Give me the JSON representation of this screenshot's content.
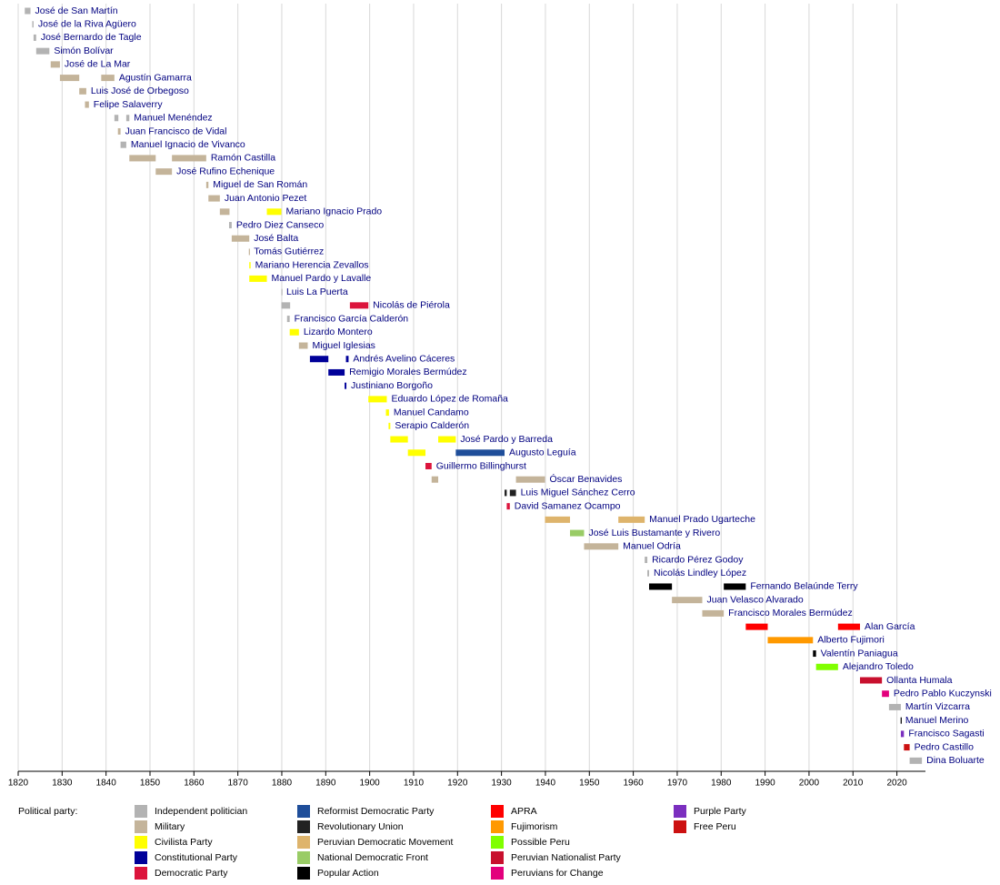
{
  "chart_data": {
    "type": "timeline",
    "legend_title": "Political party:",
    "xlim": [
      1820,
      2026.5
    ],
    "xticks": [
      1820,
      1830,
      1840,
      1850,
      1860,
      1870,
      1880,
      1890,
      1900,
      1910,
      1920,
      1930,
      1940,
      1950,
      1960,
      1970,
      1980,
      1990,
      2000,
      2010,
      2020
    ],
    "grid": true,
    "parties": [
      {
        "name": "Independent politician",
        "color": "#b3b3b3"
      },
      {
        "name": "Military",
        "color": "#c4b49a"
      },
      {
        "name": "Civilista Party",
        "color": "#ffff00"
      },
      {
        "name": "Constitutional Party",
        "color": "#000099"
      },
      {
        "name": "Democratic Party",
        "color": "#dc143c"
      },
      {
        "name": "Reformist Democratic Party",
        "color": "#1f4e9a"
      },
      {
        "name": "Revolutionary Union",
        "color": "#222222"
      },
      {
        "name": "Peruvian Democratic Movement",
        "color": "#deb46c"
      },
      {
        "name": "National Democratic Front",
        "color": "#99cc66"
      },
      {
        "name": "Popular Action",
        "color": "#000000"
      },
      {
        "name": "APRA",
        "color": "#ff0000"
      },
      {
        "name": "Fujimorism",
        "color": "#ff9900"
      },
      {
        "name": "Possible Peru",
        "color": "#80ff00"
      },
      {
        "name": "Peruvian Nationalist Party",
        "color": "#c8102e"
      },
      {
        "name": "Peruvians for Change",
        "color": "#e3007d"
      },
      {
        "name": "Purple Party",
        "color": "#7b2fbf"
      },
      {
        "name": "Free Peru",
        "color": "#cc1111"
      }
    ],
    "rows": [
      {
        "name": "José de San Martín",
        "terms": [
          {
            "start": 1821.5,
            "end": 1822.8,
            "party": "Independent politician"
          }
        ]
      },
      {
        "name": "José de la Riva Agüero",
        "terms": [
          {
            "start": 1823.2,
            "end": 1823.5,
            "party": "Independent politician"
          }
        ]
      },
      {
        "name": "José Bernardo de Tagle",
        "terms": [
          {
            "start": 1823.5,
            "end": 1824.1,
            "party": "Independent politician"
          }
        ]
      },
      {
        "name": "Simón Bolívar",
        "terms": [
          {
            "start": 1824.1,
            "end": 1827.1,
            "party": "Independent politician"
          }
        ]
      },
      {
        "name": "José de La Mar",
        "terms": [
          {
            "start": 1827.4,
            "end": 1829.5,
            "party": "Military"
          }
        ]
      },
      {
        "name": "Agustín Gamarra",
        "terms": [
          {
            "start": 1829.5,
            "end": 1833.9,
            "party": "Military"
          },
          {
            "start": 1838.9,
            "end": 1841.9,
            "party": "Military"
          }
        ]
      },
      {
        "name": "Luis José de Orbegoso",
        "terms": [
          {
            "start": 1833.9,
            "end": 1835.5,
            "party": "Military"
          }
        ]
      },
      {
        "name": "Felipe Salaverry",
        "terms": [
          {
            "start": 1835.2,
            "end": 1836.1,
            "party": "Military"
          }
        ]
      },
      {
        "name": "Manuel Menéndez",
        "terms": [
          {
            "start": 1841.9,
            "end": 1842.8,
            "party": "Independent politician"
          },
          {
            "start": 1844.6,
            "end": 1845.3,
            "party": "Independent politician"
          }
        ]
      },
      {
        "name": "Juan Francisco de Vidal",
        "terms": [
          {
            "start": 1842.7,
            "end": 1843.3,
            "party": "Military"
          }
        ]
      },
      {
        "name": "Manuel Ignacio de Vivanco",
        "terms": [
          {
            "start": 1843.3,
            "end": 1844.6,
            "party": "Independent politician"
          }
        ]
      },
      {
        "name": "Ramón Castilla",
        "terms": [
          {
            "start": 1845.3,
            "end": 1851.3,
            "party": "Military"
          },
          {
            "start": 1855.0,
            "end": 1862.8,
            "party": "Military"
          }
        ]
      },
      {
        "name": "José Rufino Echenique",
        "terms": [
          {
            "start": 1851.3,
            "end": 1855.0,
            "party": "Military"
          }
        ]
      },
      {
        "name": "Miguel de San Román",
        "terms": [
          {
            "start": 1862.8,
            "end": 1863.3,
            "party": "Military"
          }
        ]
      },
      {
        "name": "Juan Antonio Pezet",
        "terms": [
          {
            "start": 1863.3,
            "end": 1865.9,
            "party": "Military"
          }
        ]
      },
      {
        "name": "Mariano Ignacio Prado",
        "terms": [
          {
            "start": 1865.9,
            "end": 1868.1,
            "party": "Military"
          },
          {
            "start": 1876.6,
            "end": 1879.9,
            "party": "Civilista Party"
          }
        ]
      },
      {
        "name": "Pedro Diez Canseco",
        "terms": [
          {
            "start": 1868.0,
            "end": 1868.6,
            "party": "Independent politician"
          }
        ]
      },
      {
        "name": "José Balta",
        "terms": [
          {
            "start": 1868.6,
            "end": 1872.6,
            "party": "Military"
          }
        ]
      },
      {
        "name": "Tomás Gutiérrez",
        "terms": [
          {
            "start": 1872.5,
            "end": 1872.6,
            "party": "Military"
          }
        ]
      },
      {
        "name": "Mariano Herencia Zevallos",
        "terms": [
          {
            "start": 1872.6,
            "end": 1872.9,
            "party": "Civilista Party"
          }
        ]
      },
      {
        "name": "Manuel Pardo y Lavalle",
        "terms": [
          {
            "start": 1872.6,
            "end": 1876.6,
            "party": "Civilista Party"
          }
        ]
      },
      {
        "name": "Luis La Puerta",
        "terms": [
          {
            "start": 1879.9,
            "end": 1880.0,
            "party": "Independent politician"
          }
        ]
      },
      {
        "name": "Nicolás de Piérola",
        "terms": [
          {
            "start": 1879.9,
            "end": 1881.9,
            "party": "Independent politician"
          },
          {
            "start": 1895.5,
            "end": 1899.7,
            "party": "Democratic Party"
          }
        ]
      },
      {
        "name": "Francisco García Calderón",
        "terms": [
          {
            "start": 1881.2,
            "end": 1881.8,
            "party": "Independent politician"
          }
        ]
      },
      {
        "name": "Lizardo Montero",
        "terms": [
          {
            "start": 1881.8,
            "end": 1883.9,
            "party": "Civilista Party"
          }
        ]
      },
      {
        "name": "Miguel Iglesias",
        "terms": [
          {
            "start": 1883.9,
            "end": 1885.9,
            "party": "Military"
          }
        ]
      },
      {
        "name": "Andrés Avelino Cáceres",
        "terms": [
          {
            "start": 1886.4,
            "end": 1890.6,
            "party": "Constitutional Party"
          },
          {
            "start": 1894.6,
            "end": 1895.2,
            "party": "Constitutional Party"
          }
        ]
      },
      {
        "name": "Remigio Morales Bermúdez",
        "terms": [
          {
            "start": 1890.6,
            "end": 1894.3,
            "party": "Constitutional Party"
          }
        ]
      },
      {
        "name": "Justiniano Borgoño",
        "terms": [
          {
            "start": 1894.3,
            "end": 1894.7,
            "party": "Constitutional Party"
          }
        ]
      },
      {
        "name": "Eduardo López de Romaña",
        "terms": [
          {
            "start": 1899.7,
            "end": 1903.9,
            "party": "Civilista Party"
          }
        ]
      },
      {
        "name": "Manuel Candamo",
        "terms": [
          {
            "start": 1903.7,
            "end": 1904.4,
            "party": "Civilista Party"
          }
        ]
      },
      {
        "name": "Serapio Calderón",
        "terms": [
          {
            "start": 1904.3,
            "end": 1904.7,
            "party": "Civilista Party"
          }
        ]
      },
      {
        "name": "José Pardo y Barreda",
        "terms": [
          {
            "start": 1904.7,
            "end": 1908.7,
            "party": "Civilista Party"
          },
          {
            "start": 1915.6,
            "end": 1919.6,
            "party": "Civilista Party"
          }
        ]
      },
      {
        "name": "Augusto Leguía",
        "terms": [
          {
            "start": 1908.7,
            "end": 1912.7,
            "party": "Civilista Party"
          },
          {
            "start": 1919.6,
            "end": 1930.7,
            "party": "Reformist Democratic Party"
          }
        ]
      },
      {
        "name": "Guillermo Billinghurst",
        "terms": [
          {
            "start": 1912.7,
            "end": 1914.1,
            "party": "Democratic Party"
          }
        ]
      },
      {
        "name": "Óscar Benavides",
        "terms": [
          {
            "start": 1914.1,
            "end": 1915.6,
            "party": "Military"
          },
          {
            "start": 1933.3,
            "end": 1939.9,
            "party": "Military"
          }
        ]
      },
      {
        "name": "Luis Miguel Sánchez Cerro",
        "terms": [
          {
            "start": 1930.7,
            "end": 1931.2,
            "party": "Revolutionary Union"
          },
          {
            "start": 1931.9,
            "end": 1933.3,
            "party": "Revolutionary Union"
          }
        ]
      },
      {
        "name": "David Samanez Ocampo",
        "terms": [
          {
            "start": 1931.2,
            "end": 1931.9,
            "party": "Democratic Party"
          }
        ]
      },
      {
        "name": "Manuel Prado Ugarteche",
        "terms": [
          {
            "start": 1939.9,
            "end": 1945.6,
            "party": "Peruvian Democratic Movement"
          },
          {
            "start": 1956.6,
            "end": 1962.6,
            "party": "Peruvian Democratic Movement"
          }
        ]
      },
      {
        "name": "José Luis Bustamante y Rivero",
        "terms": [
          {
            "start": 1945.6,
            "end": 1948.8,
            "party": "National Democratic Front"
          }
        ]
      },
      {
        "name": "Manuel Odría",
        "terms": [
          {
            "start": 1948.8,
            "end": 1956.6,
            "party": "Military"
          }
        ]
      },
      {
        "name": "Ricardo Pérez Godoy",
        "terms": [
          {
            "start": 1962.6,
            "end": 1963.2,
            "party": "Independent politician"
          }
        ]
      },
      {
        "name": "Nicolás Lindley López",
        "terms": [
          {
            "start": 1963.2,
            "end": 1963.6,
            "party": "Independent politician"
          }
        ]
      },
      {
        "name": "Fernando Belaúnde Terry",
        "terms": [
          {
            "start": 1963.6,
            "end": 1968.8,
            "party": "Popular Action"
          },
          {
            "start": 1980.6,
            "end": 1985.6,
            "party": "Popular Action"
          }
        ]
      },
      {
        "name": "Juan Velasco Alvarado",
        "terms": [
          {
            "start": 1968.8,
            "end": 1975.7,
            "party": "Military"
          }
        ]
      },
      {
        "name": "Francisco Morales Bermúdez",
        "terms": [
          {
            "start": 1975.7,
            "end": 1980.6,
            "party": "Military"
          }
        ]
      },
      {
        "name": "Alan García",
        "terms": [
          {
            "start": 1985.6,
            "end": 1990.6,
            "party": "APRA"
          },
          {
            "start": 2006.6,
            "end": 2011.6,
            "party": "APRA"
          }
        ]
      },
      {
        "name": "Alberto Fujimori",
        "terms": [
          {
            "start": 1990.6,
            "end": 2000.9,
            "party": "Fujimorism"
          }
        ]
      },
      {
        "name": "Valentín Paniagua",
        "terms": [
          {
            "start": 2000.9,
            "end": 2001.6,
            "party": "Popular Action"
          }
        ]
      },
      {
        "name": "Alejandro Toledo",
        "terms": [
          {
            "start": 2001.6,
            "end": 2006.6,
            "party": "Possible Peru"
          }
        ]
      },
      {
        "name": "Ollanta Humala",
        "terms": [
          {
            "start": 2011.6,
            "end": 2016.6,
            "party": "Peruvian Nationalist Party"
          }
        ]
      },
      {
        "name": "Pedro Pablo Kuczynski",
        "terms": [
          {
            "start": 2016.6,
            "end": 2018.2,
            "party": "Peruvians for Change"
          }
        ]
      },
      {
        "name": "Martín Vizcarra",
        "terms": [
          {
            "start": 2018.2,
            "end": 2020.9,
            "party": "Independent politician"
          }
        ]
      },
      {
        "name": "Manuel Merino",
        "terms": [
          {
            "start": 2020.85,
            "end": 2020.9,
            "party": "Popular Action"
          }
        ]
      },
      {
        "name": "Francisco Sagasti",
        "terms": [
          {
            "start": 2020.9,
            "end": 2021.6,
            "party": "Purple Party"
          }
        ]
      },
      {
        "name": "Pedro Castillo",
        "terms": [
          {
            "start": 2021.6,
            "end": 2022.9,
            "party": "Free Peru"
          }
        ]
      },
      {
        "name": "Dina Boluarte",
        "terms": [
          {
            "start": 2022.9,
            "end": 2025.7,
            "party": "Independent politician"
          }
        ]
      }
    ]
  }
}
